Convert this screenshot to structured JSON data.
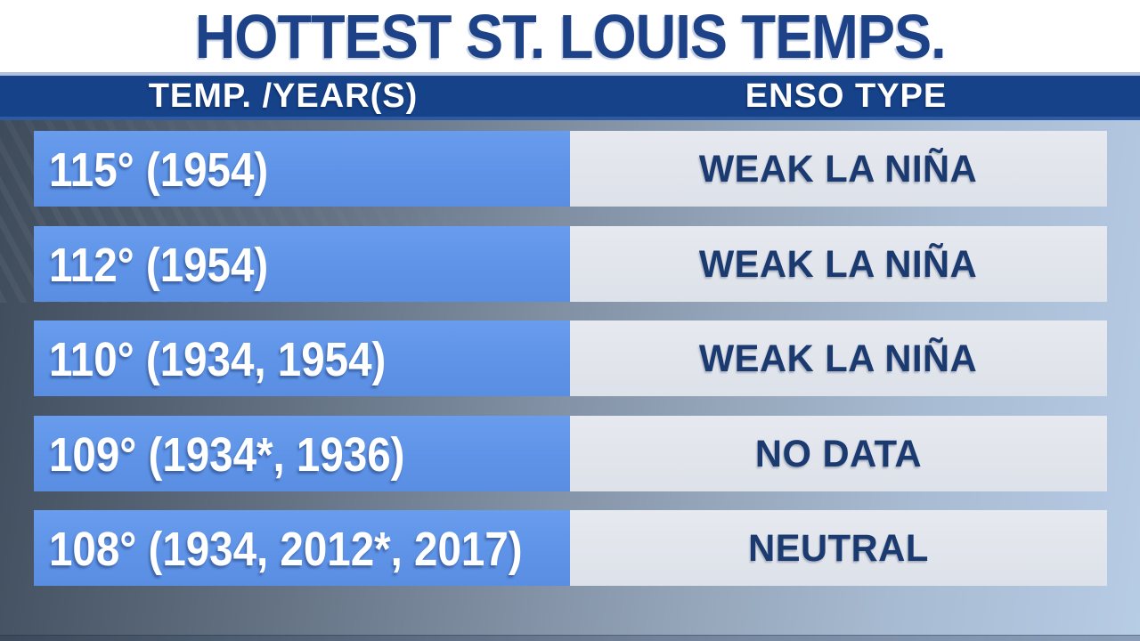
{
  "title": "HOTTEST ST. LOUIS TEMPS.",
  "columns": {
    "temp": "TEMP. /YEAR(S)",
    "enso": "ENSO TYPE"
  },
  "rows": [
    {
      "temp_years": "115° (1954)",
      "enso_type": "WEAK LA NIÑA"
    },
    {
      "temp_years": "112° (1954)",
      "enso_type": "WEAK LA NIÑA"
    },
    {
      "temp_years": "110° (1934, 1954)",
      "enso_type": "WEAK LA NIÑA"
    },
    {
      "temp_years": "109° (1934*, 1936)",
      "enso_type": "NO DATA"
    },
    {
      "temp_years": "108° (1934, 2012*, 2017)",
      "enso_type": "NEUTRAL"
    }
  ],
  "chart_data": {
    "type": "table",
    "title": "HOTTEST ST. LOUIS TEMPS.",
    "columns": [
      "TEMP. /YEAR(S)",
      "ENSO TYPE"
    ],
    "rows": [
      [
        "115° (1954)",
        "WEAK LA NIÑA"
      ],
      [
        "112° (1954)",
        "WEAK LA NIÑA"
      ],
      [
        "110° (1934, 1954)",
        "WEAK LA NIÑA"
      ],
      [
        "109° (1934*, 1936)",
        "NO DATA"
      ],
      [
        "108° (1934, 2012*, 2017)",
        "NEUTRAL"
      ]
    ],
    "records": [
      {
        "temp_f": 115,
        "years": [
          "1954"
        ],
        "enso": "WEAK LA NIÑA"
      },
      {
        "temp_f": 112,
        "years": [
          "1954"
        ],
        "enso": "WEAK LA NIÑA"
      },
      {
        "temp_f": 110,
        "years": [
          "1934",
          "1954"
        ],
        "enso": "WEAK LA NIÑA"
      },
      {
        "temp_f": 109,
        "years": [
          "1934*",
          "1936"
        ],
        "enso": "NO DATA"
      },
      {
        "temp_f": 108,
        "years": [
          "1934",
          "2012*",
          "2017"
        ],
        "enso": "NEUTRAL"
      }
    ]
  },
  "colors": {
    "title_text": "#1d4287",
    "header_bar": "#16428a",
    "header_bar_edge": "#2e5aa2",
    "header_text": "#ffffff",
    "temp_cell_bg": "#5e93e7",
    "temp_cell_text": "#ffffff",
    "enso_cell_bg": "#dfe3ea",
    "enso_cell_text": "#1b3a70",
    "title_band_bg": "#ffffff",
    "title_underline": "#b3c0dd"
  }
}
